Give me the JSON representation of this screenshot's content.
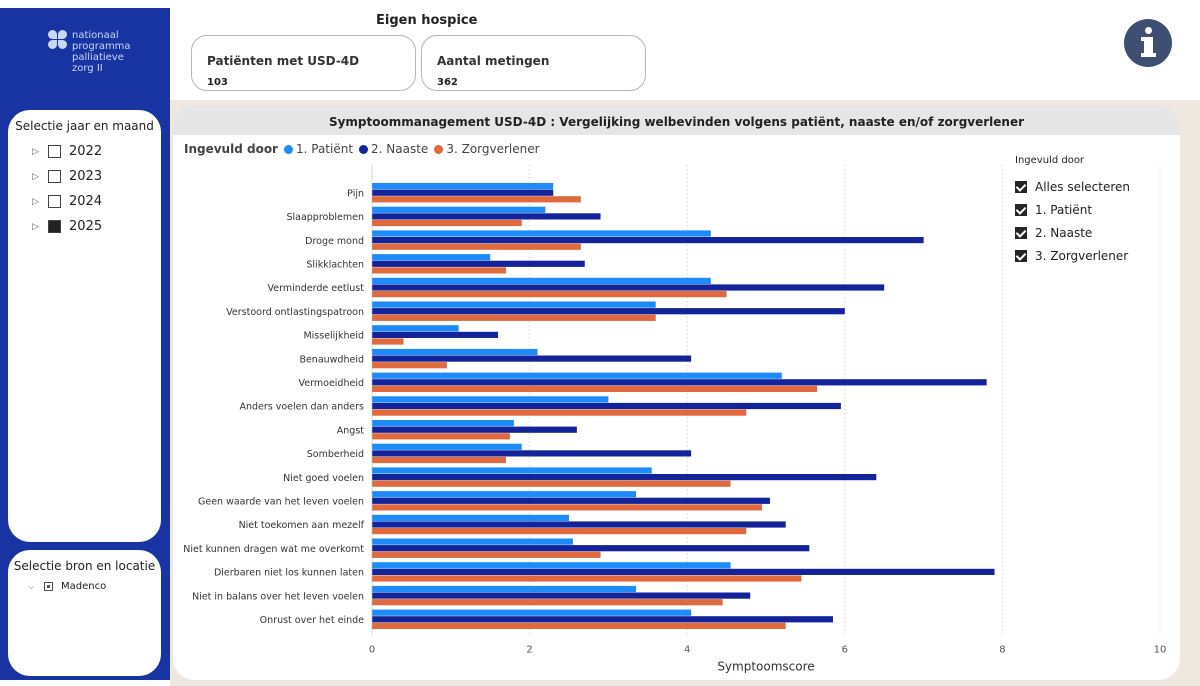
{
  "logo": {
    "lines": [
      "nationaal",
      "programma",
      "palliatieve",
      "zorg II"
    ]
  },
  "date_slicer": {
    "title": "Selectie jaar en maand",
    "years": [
      {
        "label": "2022",
        "checked": false
      },
      {
        "label": "2023",
        "checked": false
      },
      {
        "label": "2024",
        "checked": false
      },
      {
        "label": "2025",
        "checked": true
      }
    ]
  },
  "source_slicer": {
    "title": "Selectie bron en locatie",
    "items": [
      {
        "label": "Madenco"
      }
    ]
  },
  "header": {
    "title": "Eigen hospice"
  },
  "kpis": {
    "patients": {
      "label": "Patiënten met USD-4D",
      "value": "103"
    },
    "measurements": {
      "label": "Aantal metingen",
      "value": "362"
    }
  },
  "info_button": {
    "icon": "info-icon"
  },
  "chart_title": "Symptoommanagement USD-4D : Vergelijking welbevinden volgens patiënt, naaste en/of zorgverlener",
  "legend": {
    "title": "Ingevuld door",
    "items": [
      "1. Patiënt",
      "2. Naaste",
      "3. Zorgverlener"
    ]
  },
  "role_slicer": {
    "title": "Ingevuld door",
    "options": [
      {
        "label": "Alles selecteren",
        "checked": true
      },
      {
        "label": "1. Patiënt",
        "checked": true
      },
      {
        "label": "2. Naaste",
        "checked": true
      },
      {
        "label": "3. Zorgverlener",
        "checked": true
      }
    ]
  },
  "chart_data": {
    "type": "bar",
    "orientation": "horizontal",
    "title": "Symptoommanagement USD-4D : Vergelijking welbevinden volgens patiënt, naaste en/of zorgverlener",
    "xlabel": "Symptoomscore",
    "ylabel": "",
    "xlim": [
      0,
      10
    ],
    "xticks": [
      0,
      2,
      4,
      6,
      8,
      10
    ],
    "grid": true,
    "legend_position": "top-left",
    "colors": {
      "1. Patiënt": "#1d8cf8",
      "2. Naaste": "#13239a",
      "3. Zorgverlener": "#e0693d"
    },
    "categories": [
      "Pijn",
      "Slaapproblemen",
      "Droge mond",
      "Slikklachten",
      "Verminderde eetlust",
      "Verstoord ontlastingspatroon",
      "Misselijkheid",
      "Benauwdheid",
      "Vermoeidheid",
      "Anders voelen dan anders",
      "Angst",
      "Somberheid",
      "Niet goed voelen",
      "Geen waarde van het leven voelen",
      "Niet toekomen aan mezelf",
      "Niet kunnen dragen wat me overkomt",
      "Dierbaren niet los kunnen laten",
      "Niet in balans over het leven voelen",
      "Onrust over het einde"
    ],
    "series": [
      {
        "name": "1. Patiënt",
        "values": [
          2.3,
          2.2,
          4.3,
          1.5,
          4.3,
          3.6,
          1.1,
          2.1,
          5.2,
          3.0,
          1.8,
          1.9,
          3.55,
          3.35,
          2.5,
          2.55,
          4.55,
          3.35,
          4.05
        ]
      },
      {
        "name": "2. Naaste",
        "values": [
          2.3,
          2.9,
          7.0,
          2.7,
          6.5,
          6.0,
          1.6,
          4.05,
          7.8,
          5.95,
          2.6,
          4.05,
          6.4,
          5.05,
          5.25,
          5.55,
          7.9,
          4.8,
          5.85
        ]
      },
      {
        "name": "3. Zorgverlener",
        "values": [
          2.65,
          1.9,
          2.65,
          1.7,
          4.5,
          3.6,
          0.4,
          0.95,
          5.65,
          4.75,
          1.75,
          1.7,
          4.55,
          4.95,
          4.75,
          2.9,
          5.45,
          4.45,
          5.25
        ]
      }
    ]
  }
}
